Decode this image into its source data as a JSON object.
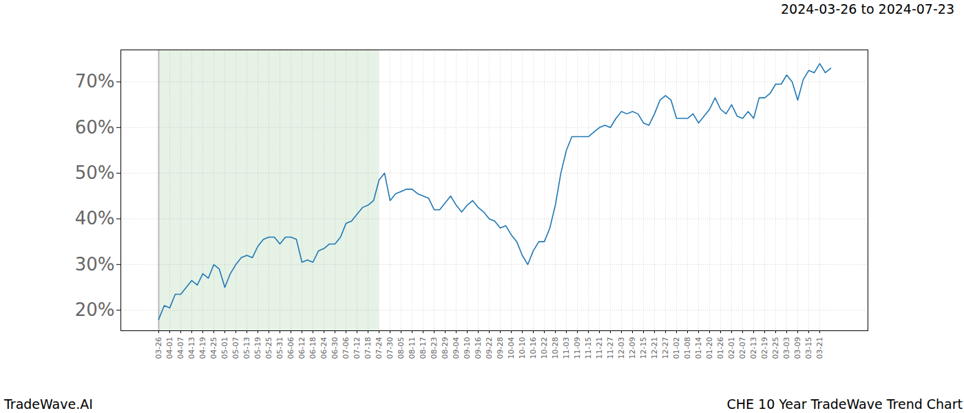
{
  "chart_data": {
    "type": "line",
    "title": "CHE 10 Year TradeWave Trend Chart",
    "subtitle": "2024-03-26 to 2024-07-23",
    "caption": "TradeWave.AI",
    "color": "#1f77b4",
    "grid": true,
    "shaded_range": [
      "03-26",
      "07-24"
    ],
    "x": [
      "03-26",
      null,
      "04-01",
      null,
      "04-07",
      null,
      "04-13",
      null,
      "04-19",
      null,
      "04-25",
      null,
      "05-01",
      null,
      "05-07",
      null,
      "05-13",
      null,
      "05-19",
      null,
      "05-25",
      null,
      "05-31",
      null,
      "06-06",
      null,
      "06-12",
      null,
      "06-18",
      null,
      "06-24",
      null,
      "06-30",
      null,
      "07-06",
      null,
      "07-12",
      null,
      "07-18",
      null,
      "07-24",
      null,
      "07-30",
      null,
      "08-05",
      null,
      "08-11",
      null,
      "08-17",
      null,
      "08-23",
      null,
      "08-29",
      null,
      "09-04",
      null,
      "09-10",
      null,
      "09-16",
      null,
      "09-22",
      null,
      "09-28",
      null,
      "10-04",
      null,
      "10-10",
      null,
      "10-16",
      null,
      "10-22",
      null,
      "10-28",
      null,
      "11-03",
      null,
      "11-09",
      null,
      "11-15",
      null,
      "11-21",
      null,
      "11-27",
      null,
      "12-03",
      null,
      "12-09",
      null,
      "12-15",
      null,
      "12-21",
      null,
      "12-27",
      null,
      "01-02",
      null,
      "01-08",
      null,
      "01-14",
      null,
      "01-20",
      null,
      "01-26",
      null,
      "02-01",
      null,
      "02-07",
      null,
      "02-13",
      null,
      "02-19",
      null,
      "02-25",
      null,
      "03-03",
      null,
      "03-09",
      null,
      "03-15",
      null,
      "03-21",
      null,
      null
    ],
    "values": [
      18,
      21,
      20.5,
      23.5,
      23.5,
      25,
      26.5,
      25.5,
      28,
      27,
      30,
      29,
      25,
      28,
      30,
      31.5,
      32,
      31.5,
      34,
      35.5,
      36,
      36,
      34.5,
      36,
      36,
      35.5,
      30.5,
      31,
      30.5,
      33,
      33.5,
      34.5,
      34.5,
      36,
      39,
      39.5,
      41,
      42.5,
      43,
      44,
      48.5,
      50,
      44,
      45.5,
      46,
      46.5,
      46.5,
      45.5,
      45,
      44.5,
      42,
      42,
      43.5,
      45,
      43,
      41.5,
      43,
      44,
      42.5,
      41.5,
      40,
      39.5,
      38,
      38.5,
      36.5,
      35,
      32,
      30,
      33,
      35,
      35,
      38,
      43,
      50,
      55,
      58,
      58,
      58,
      58,
      59,
      60,
      60.5,
      60,
      62,
      63.5,
      63,
      63.5,
      63,
      61,
      60.5,
      63,
      66,
      67,
      66,
      62,
      62,
      62,
      63,
      61,
      62.5,
      64,
      66.5,
      64,
      63,
      65,
      62.5,
      62,
      63.5,
      62,
      66.5,
      66.5,
      67.5,
      69.5,
      69.5,
      71.5,
      70,
      66,
      70.5,
      72.5,
      72,
      74,
      72,
      73
    ],
    "ylim": [
      15.5,
      77
    ],
    "yticks": [
      {
        "value": 20,
        "label": "20%"
      },
      {
        "value": 30,
        "label": "30%"
      },
      {
        "value": 40,
        "label": "40%"
      },
      {
        "value": 50,
        "label": "50%"
      },
      {
        "value": 60,
        "label": "60%"
      },
      {
        "value": 70,
        "label": "70%"
      }
    ]
  }
}
